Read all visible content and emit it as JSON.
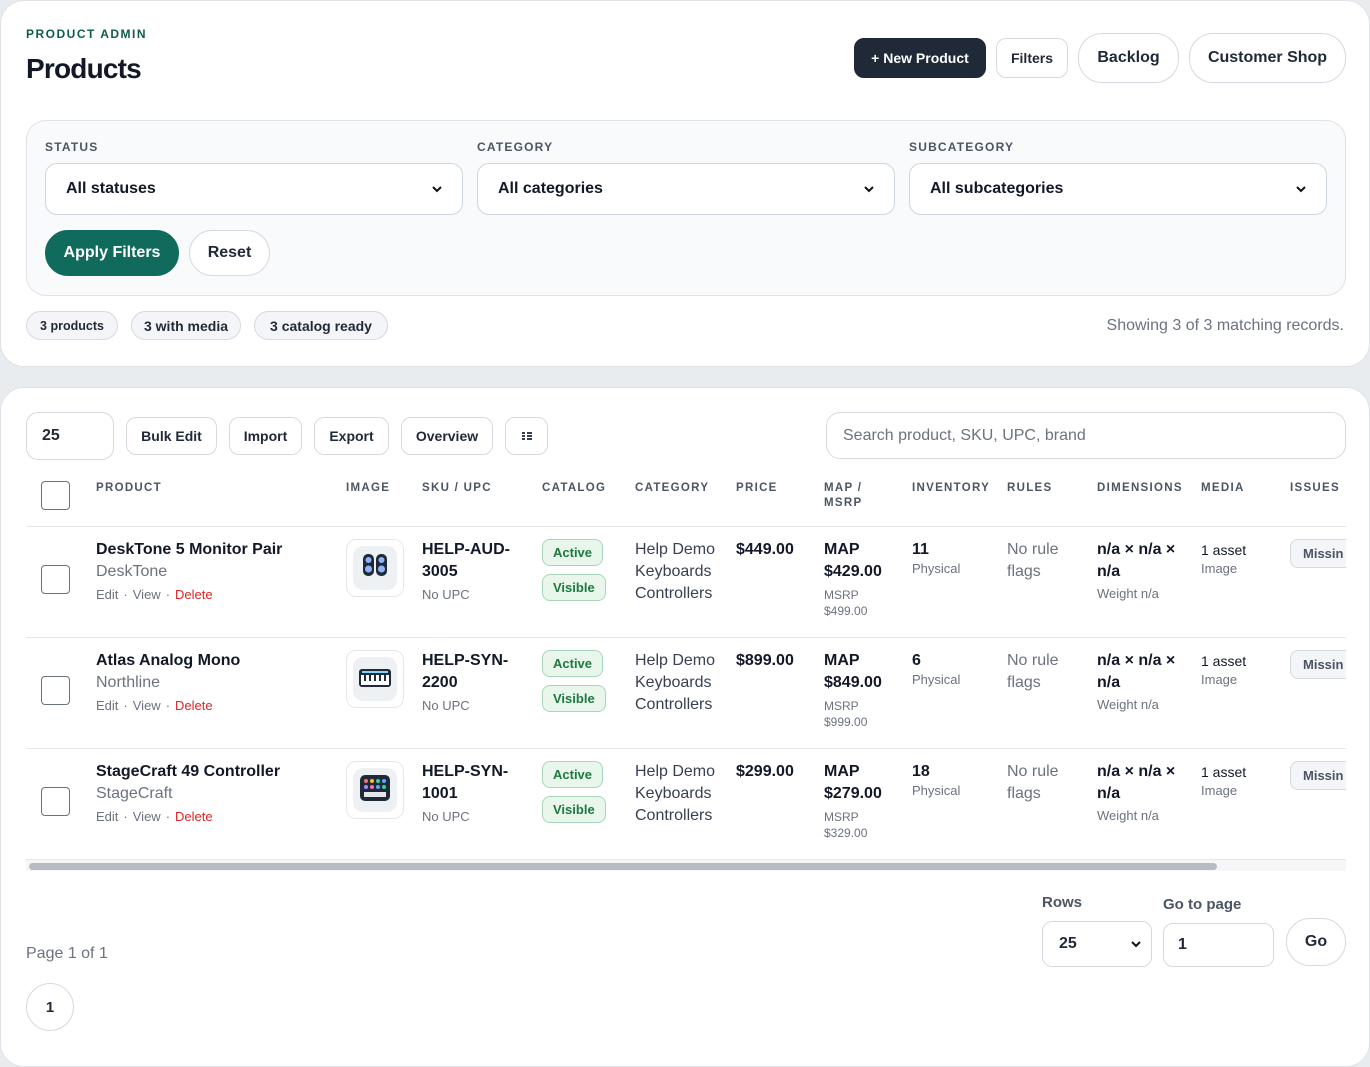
{
  "header": {
    "eyebrow": "PRODUCT ADMIN",
    "title": "Products",
    "actions": [
      "+ New Product",
      "Filters",
      "Backlog",
      "Customer Shop"
    ]
  },
  "filters": {
    "fields": [
      {
        "label": "STATUS",
        "value": "All statuses"
      },
      {
        "label": "CATEGORY",
        "value": "All categories"
      },
      {
        "label": "SUBCATEGORY",
        "value": "All subcategories"
      }
    ],
    "apply": "Apply Filters",
    "reset": "Reset"
  },
  "summary": {
    "chips": [
      "3 products",
      "3 with media",
      "3 catalog ready"
    ],
    "showing": "Showing 3 of 3 matching records."
  },
  "toolbar": {
    "page_size": "25",
    "buttons": [
      "Bulk Edit",
      "Import",
      "Export",
      "Overview"
    ],
    "search_placeholder": "Search product, SKU, UPC, brand"
  },
  "table": {
    "columns": [
      "PRODUCT",
      "IMAGE",
      "SKU / UPC",
      "CATALOG",
      "CATEGORY",
      "PRICE",
      "MAP / MSRP",
      "INVENTORY",
      "RULES",
      "DIMENSIONS",
      "MEDIA",
      "ISSUES"
    ],
    "rows": [
      {
        "name": "DeskTone 5 Monitor Pair",
        "brand": "DeskTone",
        "actions": [
          "Edit",
          "View",
          "Delete"
        ],
        "sku": "HELP-AUD-3005",
        "upc": "No UPC",
        "catalog": [
          "Active",
          "Visible"
        ],
        "category": "Help Demo Keyboards Controllers",
        "price": "$449.00",
        "map": "MAP $429.00",
        "msrp_label": "MSRP",
        "msrp": "$499.00",
        "inventory": "11",
        "inventory_type": "Physical",
        "rules": "No rule flags",
        "dimensions": "n/a × n/a × n/a",
        "weight": "Weight n/a",
        "media": "1 asset",
        "media_type": "Image",
        "issue": "Missin"
      },
      {
        "name": "Atlas Analog Mono",
        "brand": "Northline",
        "actions": [
          "Edit",
          "View",
          "Delete"
        ],
        "sku": "HELP-SYN-2200",
        "upc": "No UPC",
        "catalog": [
          "Active",
          "Visible"
        ],
        "category": "Help Demo Keyboards Controllers",
        "price": "$899.00",
        "map": "MAP $849.00",
        "msrp_label": "MSRP",
        "msrp": "$999.00",
        "inventory": "6",
        "inventory_type": "Physical",
        "rules": "No rule flags",
        "dimensions": "n/a × n/a × n/a",
        "weight": "Weight n/a",
        "media": "1 asset",
        "media_type": "Image",
        "issue": "Missin"
      },
      {
        "name": "StageCraft 49 Controller",
        "brand": "StageCraft",
        "actions": [
          "Edit",
          "View",
          "Delete"
        ],
        "sku": "HELP-SYN-1001",
        "upc": "No UPC",
        "catalog": [
          "Active",
          "Visible"
        ],
        "category": "Help Demo Keyboards Controllers",
        "price": "$299.00",
        "map": "MAP $279.00",
        "msrp_label": "MSRP",
        "msrp": "$329.00",
        "inventory": "18",
        "inventory_type": "Physical",
        "rules": "No rule flags",
        "dimensions": "n/a × n/a × n/a",
        "weight": "Weight n/a",
        "media": "1 asset",
        "media_type": "Image",
        "issue": "Missin"
      }
    ]
  },
  "pagination": {
    "page_info": "Page 1 of 1",
    "pages": [
      "1"
    ],
    "rows_label": "Rows",
    "rows_value": "25",
    "goto_label": "Go to page",
    "goto_value": "1",
    "go": "Go"
  }
}
